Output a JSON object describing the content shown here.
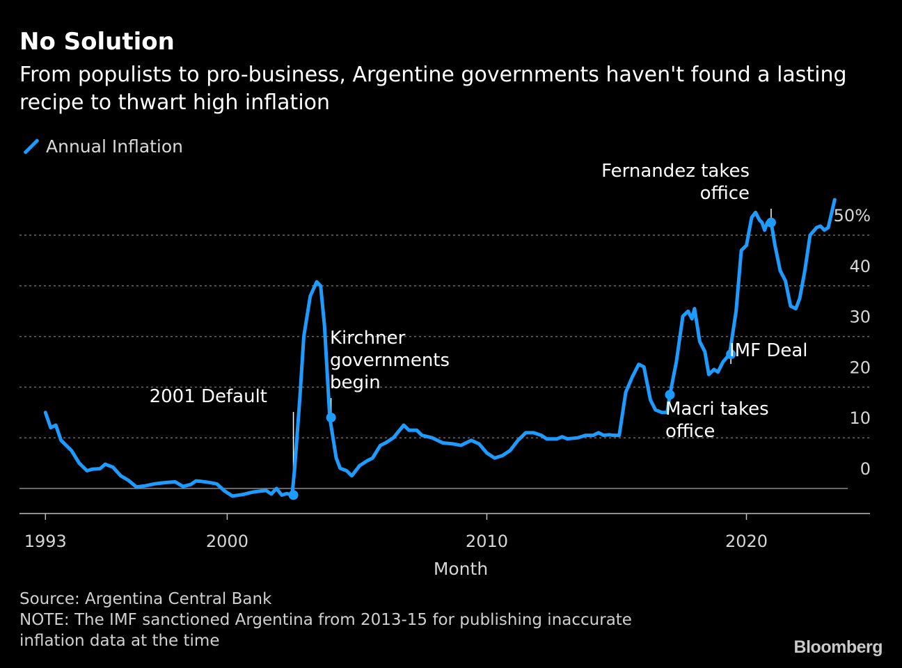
{
  "header": {
    "title": "No Solution",
    "subtitle": "From populists to pro-business, Argentine governments haven't found a lasting recipe to thwart high inflation"
  },
  "legend": {
    "label": "Annual Inflation",
    "color": "#1e9bff"
  },
  "footer": {
    "source": "Source: Argentina Central Bank",
    "note_line1": "NOTE: The IMF sanctioned Argentina from 2013-15 for publishing inaccurate",
    "note_line2": "inflation data at the time",
    "brand": "Bloomberg"
  },
  "chart_data": {
    "type": "line",
    "title": "No Solution",
    "xlabel": "Month",
    "ylabel": "",
    "xlim": [
      1992,
      2023.9
    ],
    "ylim": [
      -5,
      50
    ],
    "y_ticks": [
      0,
      10,
      20,
      30,
      40,
      50
    ],
    "y_tick_labels": [
      "0",
      "10",
      "20",
      "30",
      "40",
      "50%"
    ],
    "x_ticks": [
      1993,
      2000,
      2010,
      2020
    ],
    "x_tick_labels": [
      "1993",
      "2000",
      "2010",
      "2020"
    ],
    "grid": true,
    "legend_position": "top-left",
    "series": [
      {
        "name": "Annual Inflation",
        "color": "#1e9bff",
        "points": [
          [
            1993.0,
            15.0
          ],
          [
            1993.2,
            12.0
          ],
          [
            1993.4,
            12.5
          ],
          [
            1993.6,
            9.5
          ],
          [
            1993.8,
            8.5
          ],
          [
            1994.0,
            7.5
          ],
          [
            1994.3,
            5.0
          ],
          [
            1994.6,
            3.5
          ],
          [
            1994.8,
            3.8
          ],
          [
            1995.1,
            3.9
          ],
          [
            1995.3,
            4.8
          ],
          [
            1995.6,
            4.2
          ],
          [
            1995.9,
            2.5
          ],
          [
            1996.2,
            1.6
          ],
          [
            1996.5,
            0.3
          ],
          [
            1996.8,
            0.5
          ],
          [
            1997.2,
            0.9
          ],
          [
            1997.5,
            1.1
          ],
          [
            1997.7,
            1.2
          ],
          [
            1998.0,
            1.3
          ],
          [
            1998.3,
            0.4
          ],
          [
            1998.6,
            0.8
          ],
          [
            1998.8,
            1.5
          ],
          [
            1999.0,
            1.4
          ],
          [
            1999.3,
            1.2
          ],
          [
            1999.6,
            0.9
          ],
          [
            1999.9,
            -0.5
          ],
          [
            2000.2,
            -1.5
          ],
          [
            2000.6,
            -1.2
          ],
          [
            2001.0,
            -0.7
          ],
          [
            2001.3,
            -0.5
          ],
          [
            2001.5,
            -0.4
          ],
          [
            2001.7,
            -1.1
          ],
          [
            2001.9,
            0.0
          ],
          [
            2002.1,
            -1.3
          ],
          [
            2002.3,
            -1.0
          ],
          [
            2002.5,
            -1.3
          ],
          [
            2002.6,
            4.0
          ],
          [
            2002.8,
            18.0
          ],
          [
            2002.95,
            30.0
          ],
          [
            2003.2,
            38.0
          ],
          [
            2003.45,
            40.8
          ],
          [
            2003.6,
            40.0
          ],
          [
            2003.75,
            32.0
          ],
          [
            2003.95,
            14.0
          ],
          [
            2004.2,
            6.0
          ],
          [
            2004.35,
            4.0
          ],
          [
            2004.6,
            3.5
          ],
          [
            2004.8,
            2.5
          ],
          [
            2005.1,
            4.5
          ],
          [
            2005.4,
            5.5
          ],
          [
            2005.6,
            6.0
          ],
          [
            2005.9,
            8.5
          ],
          [
            2006.1,
            9.0
          ],
          [
            2006.4,
            10.0
          ],
          [
            2006.8,
            12.5
          ],
          [
            2007.0,
            11.5
          ],
          [
            2007.3,
            11.5
          ],
          [
            2007.5,
            10.5
          ],
          [
            2007.9,
            10.0
          ],
          [
            2008.3,
            9.0
          ],
          [
            2008.7,
            8.8
          ],
          [
            2009.0,
            8.5
          ],
          [
            2009.4,
            9.5
          ],
          [
            2009.7,
            8.8
          ],
          [
            2010.0,
            7.0
          ],
          [
            2010.3,
            6.0
          ],
          [
            2010.6,
            6.5
          ],
          [
            2010.9,
            7.5
          ],
          [
            2011.2,
            9.5
          ],
          [
            2011.5,
            11.0
          ],
          [
            2011.8,
            11.0
          ],
          [
            2012.1,
            10.5
          ],
          [
            2012.3,
            9.8
          ],
          [
            2012.7,
            9.8
          ],
          [
            2012.9,
            10.2
          ],
          [
            2013.1,
            9.8
          ],
          [
            2013.5,
            10.0
          ],
          [
            2013.8,
            10.5
          ],
          [
            2014.1,
            10.5
          ],
          [
            2014.3,
            11.0
          ],
          [
            2014.5,
            10.5
          ],
          [
            2014.7,
            10.6
          ],
          [
            2014.9,
            10.5
          ],
          [
            2015.1,
            10.5
          ],
          [
            2015.35,
            19.0
          ],
          [
            2015.6,
            22.0
          ],
          [
            2015.85,
            24.5
          ],
          [
            2016.05,
            24.0
          ],
          [
            2016.3,
            17.5
          ],
          [
            2016.5,
            15.5
          ],
          [
            2016.75,
            15.0
          ],
          [
            2016.95,
            15.0
          ],
          [
            2017.05,
            18.5
          ],
          [
            2017.3,
            25.0
          ],
          [
            2017.55,
            34.0
          ],
          [
            2017.75,
            35.0
          ],
          [
            2017.9,
            33.5
          ],
          [
            2018.0,
            35.5
          ],
          [
            2018.2,
            29.0
          ],
          [
            2018.4,
            27.0
          ],
          [
            2018.55,
            22.5
          ],
          [
            2018.75,
            23.5
          ],
          [
            2018.9,
            23.0
          ],
          [
            2019.1,
            25.0
          ],
          [
            2019.35,
            26.5
          ],
          [
            2019.6,
            35.0
          ],
          [
            2019.8,
            47.0
          ],
          [
            2020.0,
            48.0
          ],
          [
            2020.2,
            53.5
          ],
          [
            2020.35,
            54.5
          ],
          [
            2020.5,
            53.0
          ],
          [
            2020.6,
            52.5
          ],
          [
            2020.7,
            51.0
          ],
          [
            2020.8,
            52.5
          ],
          [
            2020.95,
            52.5
          ],
          [
            2021.1,
            48.0
          ],
          [
            2021.3,
            43.0
          ],
          [
            2021.5,
            41.0
          ],
          [
            2021.7,
            36.0
          ],
          [
            2021.9,
            35.5
          ],
          [
            2022.05,
            37.5
          ],
          [
            2022.25,
            43.0
          ],
          [
            2022.45,
            50.0
          ],
          [
            2022.7,
            51.5
          ],
          [
            2022.85,
            51.8
          ],
          [
            2023.0,
            51.0
          ],
          [
            2023.15,
            51.5
          ],
          [
            2023.4,
            57.0
          ]
        ]
      }
    ],
    "annotations": [
      {
        "text": "2001 Default",
        "x": 2002.55,
        "y": -1.3,
        "marker": false
      },
      {
        "text": "Kirchner governments begin",
        "lines": [
          "Kirchner",
          "governments",
          "begin"
        ],
        "x": 2004.0,
        "y": 14.0,
        "marker": true
      },
      {
        "text": "Macri takes office",
        "lines": [
          "Macri takes",
          "office"
        ],
        "x": 2017.05,
        "y": 18.5,
        "marker": true
      },
      {
        "text": "IMF Deal",
        "x": 2019.4,
        "y": 26.5,
        "marker": true
      },
      {
        "text": "Fernandez takes office",
        "lines": [
          "Fernandez takes",
          "office"
        ],
        "x": 2020.95,
        "y": 52.5,
        "marker": true
      }
    ]
  }
}
